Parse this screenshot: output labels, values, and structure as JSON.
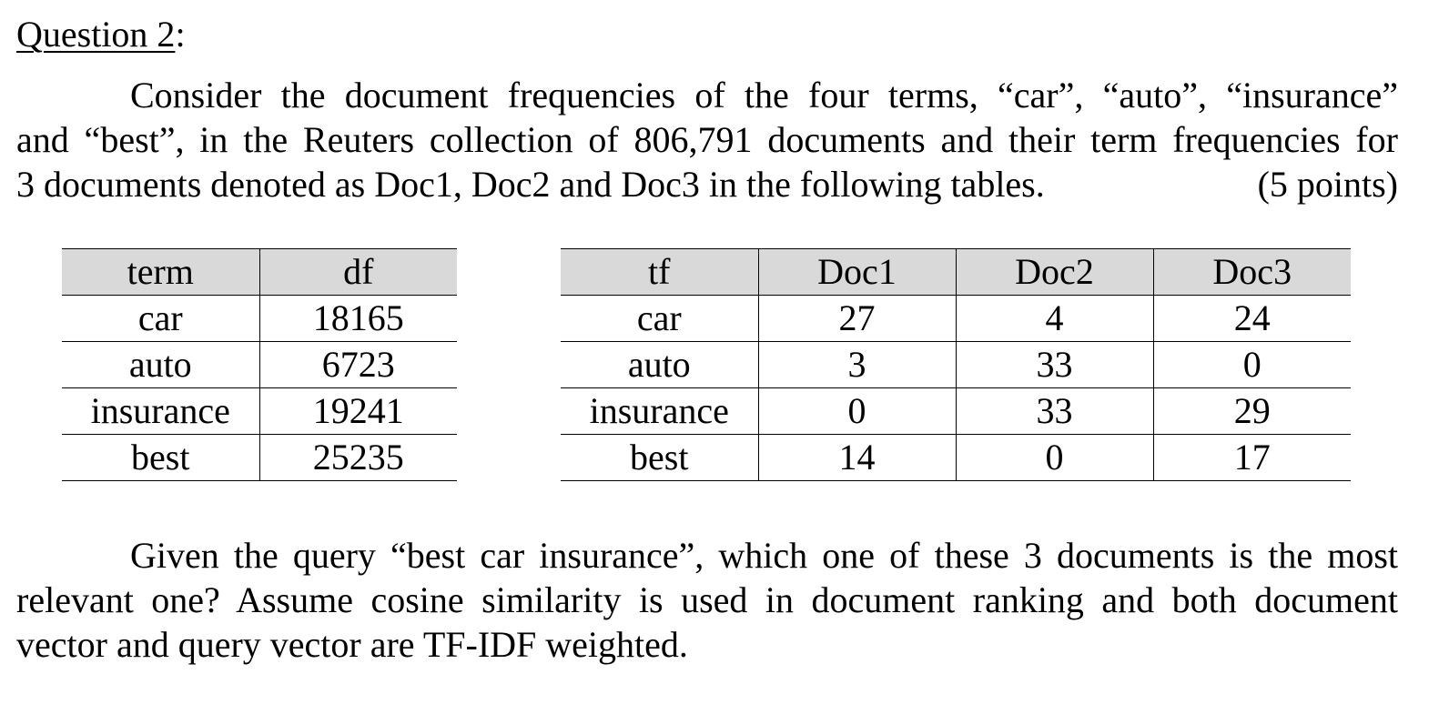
{
  "heading": {
    "text": "Question 2",
    "suffix": ":"
  },
  "intro": {
    "line1": "Consider the document frequencies of the four terms, “car”, “auto”, “insurance”",
    "line2": "and “best”, in the Reuters collection of 806,791 documents and their term frequencies for",
    "line3": "3 documents denoted as Doc1, Doc2 and Doc3 in the following tables.",
    "points": "(5  points)"
  },
  "df_table": {
    "headers": [
      "term",
      "df"
    ],
    "rows": [
      [
        "car",
        "18165"
      ],
      [
        "auto",
        "6723"
      ],
      [
        "insurance",
        "19241"
      ],
      [
        "best",
        "25235"
      ]
    ]
  },
  "tf_table": {
    "headers": [
      "tf",
      "Doc1",
      "Doc2",
      "Doc3"
    ],
    "rows": [
      [
        "car",
        "27",
        "4",
        "24"
      ],
      [
        "auto",
        "3",
        "33",
        "0"
      ],
      [
        "insurance",
        "0",
        "33",
        "29"
      ],
      [
        "best",
        "14",
        "0",
        "17"
      ]
    ]
  },
  "question": {
    "line1": "Given the query “best car insurance”, which one of these 3 documents is the most",
    "line2": "relevant one? Assume cosine similarity is used in document ranking and both document",
    "line3": "vector and query vector are TF-IDF weighted."
  }
}
